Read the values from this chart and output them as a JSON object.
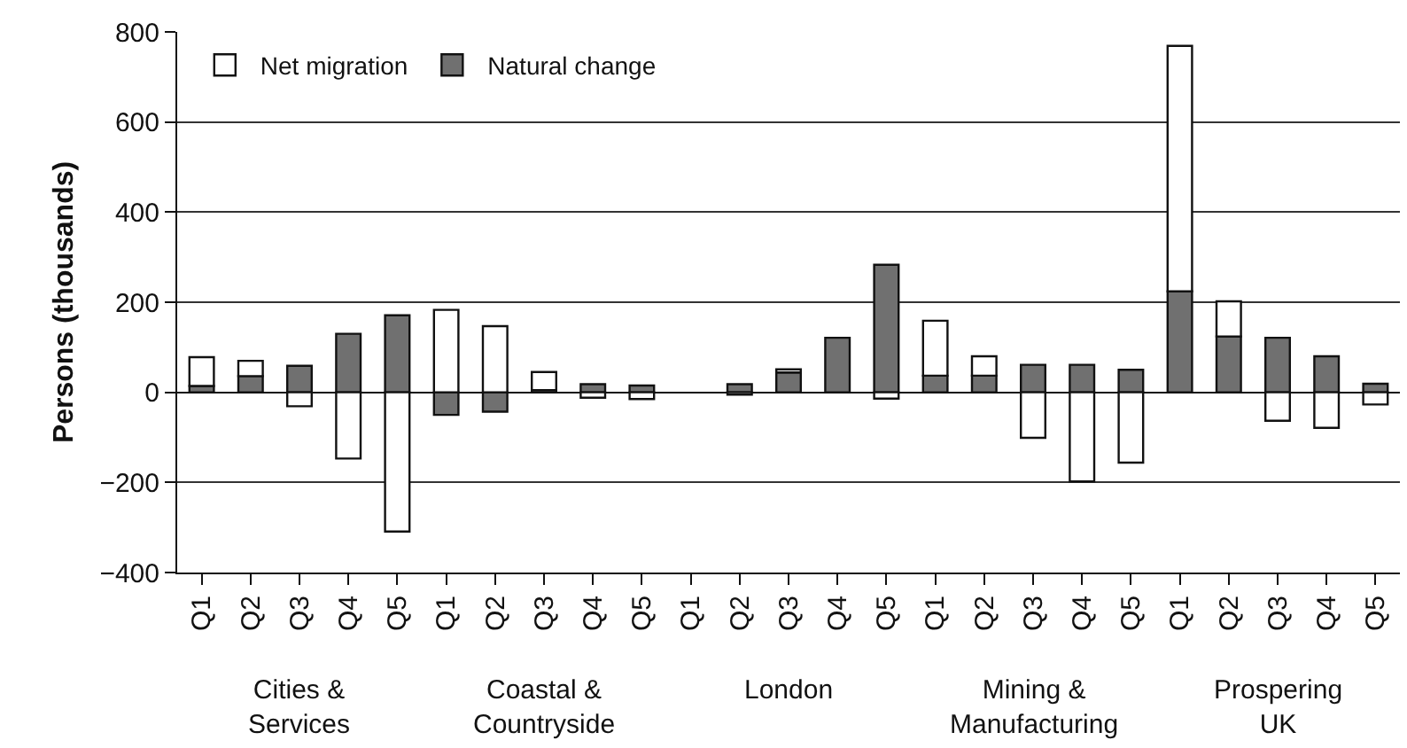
{
  "chart_data": {
    "type": "bar",
    "stacked": true,
    "ylabel": "Persons (thousands)",
    "categories": [
      "Q1",
      "Q2",
      "Q3",
      "Q4",
      "Q5",
      "Q1",
      "Q2",
      "Q3",
      "Q4",
      "Q5",
      "Q1",
      "Q2",
      "Q3",
      "Q4",
      "Q5",
      "Q1",
      "Q2",
      "Q3",
      "Q4",
      "Q5",
      "Q1",
      "Q2",
      "Q3",
      "Q4",
      "Q5"
    ],
    "series": [
      {
        "name": "Natural change",
        "color": "#707070",
        "values": [
          14,
          36,
          59,
          130,
          171,
          -50,
          -43,
          5,
          18,
          15,
          null,
          18,
          44,
          121,
          283,
          37,
          37,
          61,
          61,
          50,
          224,
          124,
          121,
          80,
          19
        ]
      },
      {
        "name": "Net migration",
        "color": "#ffffff",
        "values": [
          64,
          34,
          -31,
          -147,
          -309,
          183,
          147,
          40,
          -12,
          -15,
          null,
          -5,
          7,
          null,
          -14,
          122,
          43,
          -101,
          -198,
          -156,
          545,
          78,
          -63,
          -79,
          -27
        ]
      }
    ],
    "ylim": [
      -400,
      800
    ],
    "yticks": [
      {
        "value": -400,
        "label": "−400"
      },
      {
        "value": -200,
        "label": "−200"
      },
      0,
      200,
      400,
      600,
      800
    ],
    "grid": "y",
    "legend": "top left",
    "annotations": [
      "Cities & Services",
      "Coastal & Countryside",
      "London",
      "Mining & Manufacturing",
      "Prospering UK"
    ]
  }
}
